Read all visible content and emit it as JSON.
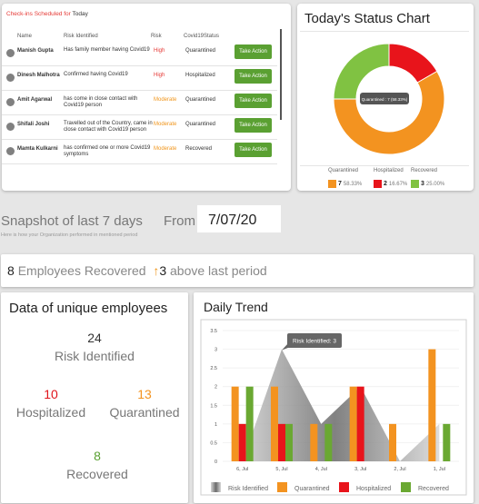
{
  "checkins": {
    "title_prefix": "Check-ins Scheduled for",
    "title_day": "Today",
    "headers": {
      "name": "Name",
      "risk_identified": "Risk Identified",
      "risk": "Risk",
      "status": "Covid19Status"
    },
    "rows": [
      {
        "name": "Manish Gupta",
        "issue": "Has family member having Covid19",
        "risk": "High",
        "status": "Quarantined",
        "action": "Take Action"
      },
      {
        "name": "Dinesh Malhotra",
        "issue": "Confirmed having Covid19",
        "risk": "High",
        "status": "Hospitalized",
        "action": "Take Action"
      },
      {
        "name": "Amit Agarwal",
        "issue": "has come in close contact with Covid19 person",
        "risk": "Moderate",
        "status": "Quarantined",
        "action": "Take Action"
      },
      {
        "name": "Shifali Joshi",
        "issue": "Travelled out of the Country, came in close contact with Covid19 person",
        "risk": "Moderate",
        "status": "Quarantined",
        "action": "Take Action"
      },
      {
        "name": "Mamta Kulkarni",
        "issue": "has confirmed one or more Covid19 symptoms",
        "risk": "Moderate",
        "status": "Recovered",
        "action": "Take Action"
      }
    ]
  },
  "status_chart": {
    "title": "Today's Status Chart",
    "tooltip": "Quarantined : 7 (58.33%)",
    "legend": [
      {
        "label": "Quarantined",
        "count": "7",
        "pct": "58.33%",
        "color": "#f39320"
      },
      {
        "label": "Hospitalized",
        "count": "2",
        "pct": "16.67%",
        "color": "#e8141b"
      },
      {
        "label": "Recovered",
        "count": "3",
        "pct": "25.00%",
        "color": "#80c242"
      }
    ]
  },
  "snapshot": {
    "title": "Snapshot of last 7 days",
    "subtitle": "Here is how your Organization performed in mentioned period",
    "from_label": "From",
    "from_date": "7/07/20"
  },
  "recovered_bar": {
    "count": "8",
    "label": "Employees Recovered",
    "delta": "3",
    "delta_label": "above last period"
  },
  "unique": {
    "title": "Data of unique employees",
    "risk_value": "24",
    "risk_label": "Risk Identified",
    "hosp_value": "10",
    "hosp_label": "Hospitalized",
    "quar_value": "13",
    "quar_label": "Quarantined",
    "rec_value": "8",
    "rec_label": "Recovered",
    "colors": {
      "hosp": "#e0141b",
      "quar": "#f39320",
      "rec": "#5aa032"
    }
  },
  "trend": {
    "title": "Daily Trend",
    "tooltip": "Risk Identified: 3"
  },
  "chart_data": {
    "type": "bar",
    "title": "Daily Trend",
    "categories": [
      "6, Jul",
      "5, Jul",
      "4, Jul",
      "3, Jul",
      "2, Jul",
      "1, Jul"
    ],
    "ylim": [
      0,
      3.5
    ],
    "yticks": [
      "0",
      "0.5",
      "1",
      "1.5",
      "2",
      "2.5",
      "3",
      "3.5"
    ],
    "area_series": {
      "name": "Risk Identified",
      "values": [
        0,
        3,
        1,
        2,
        0,
        1
      ]
    },
    "series": [
      {
        "name": "Quarantined",
        "values": [
          2,
          2,
          1,
          2,
          1,
          3
        ],
        "color": "#f39320"
      },
      {
        "name": "Hospitalized",
        "values": [
          1,
          1,
          0,
          2,
          0,
          0
        ],
        "color": "#e8141b"
      },
      {
        "name": "Recovered",
        "values": [
          2,
          1,
          1,
          0,
          0,
          1
        ],
        "color": "#6aa832"
      }
    ],
    "legend": [
      "Risk Identified",
      "Quarantined",
      "Hospitalized",
      "Recovered"
    ]
  }
}
